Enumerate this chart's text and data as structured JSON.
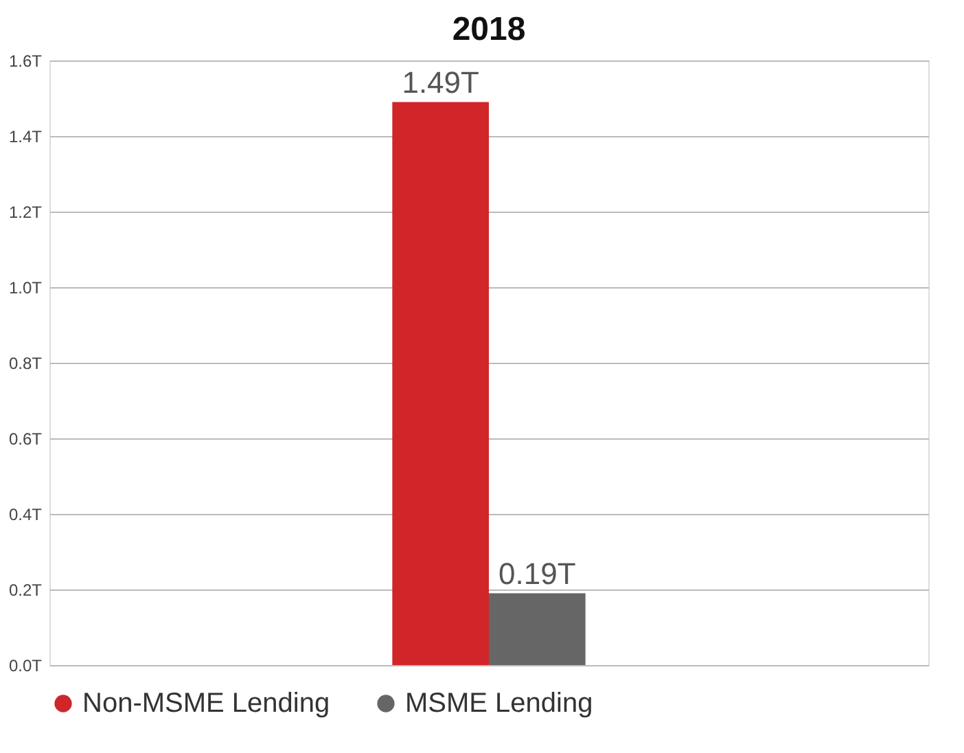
{
  "chart_data": {
    "type": "bar",
    "title": "2018",
    "categories": [
      null
    ],
    "series": [
      {
        "name": "Non-MSME Lending",
        "color": "#d0262a",
        "values": [
          1.49
        ],
        "value_labels": [
          "1.49T"
        ]
      },
      {
        "name": "MSME Lending",
        "color": "#666666",
        "values": [
          0.19
        ],
        "value_labels": [
          "0.19T"
        ]
      }
    ],
    "ylim": [
      0,
      1.6
    ],
    "yticks": [
      {
        "value": 0,
        "label": "0.0T"
      },
      {
        "value": 0.2,
        "label": "0.2T"
      },
      {
        "value": 0.4,
        "label": "0.4T"
      },
      {
        "value": 0.6,
        "label": "0.6T"
      },
      {
        "value": 0.8,
        "label": "0.8T"
      },
      {
        "value": 1.0,
        "label": "1.0T"
      },
      {
        "value": 1.2,
        "label": "1.2T"
      },
      {
        "value": 1.4,
        "label": "1.4T"
      },
      {
        "value": 1.6,
        "label": "1.6T"
      }
    ],
    "grid": "y",
    "legend": "bottom left",
    "tick_labels": "y"
  }
}
